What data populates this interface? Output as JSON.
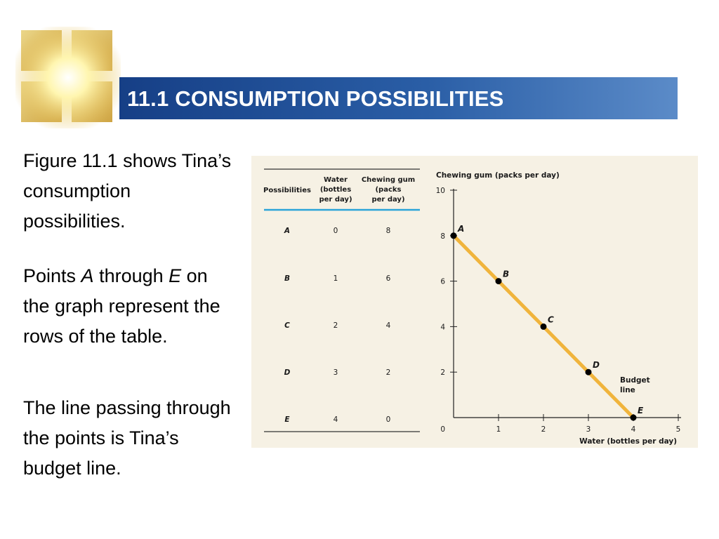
{
  "slide": {
    "title": "11.1 CONSUMPTION POSSIBILITIES",
    "paragraph1": "Figure 11.1 shows Tina’s consumption possibilities.",
    "paragraph2": {
      "part1": "Points ",
      "italic1": "A",
      "part2": " through ",
      "italic2": "E",
      "part3": " on the graph represent the rows of the table."
    },
    "paragraph3": "The line passing through the points is Tina’s budget line."
  },
  "table": {
    "headers": [
      "Possibilities",
      "Water (bottles per day)",
      "Chewing gum (packs per day)"
    ],
    "header_lines": [
      [
        "Possibilities"
      ],
      [
        "Water",
        "(bottles",
        "per day)"
      ],
      [
        "Chewing gum",
        "(packs",
        "per day)"
      ]
    ],
    "rows": [
      [
        "A",
        "0",
        "8"
      ],
      [
        "B",
        "1",
        "6"
      ],
      [
        "C",
        "2",
        "4"
      ],
      [
        "D",
        "3",
        "2"
      ],
      [
        "E",
        "4",
        "0"
      ]
    ]
  },
  "chart_data": {
    "type": "line",
    "title": "",
    "xlabel": "Water (bottles per day)",
    "ylabel": "Chewing gum (packs per day)",
    "xlim": [
      0,
      5
    ],
    "ylim": [
      0,
      10
    ],
    "xticks": [
      "1",
      "2",
      "3",
      "4",
      "5"
    ],
    "yticks": [
      "10",
      "8",
      "6",
      "4",
      "2"
    ],
    "origin_label": "0",
    "series": [
      {
        "name": "Budget line",
        "x": [
          0,
          1,
          2,
          3,
          4
        ],
        "y": [
          8,
          6,
          4,
          2,
          0
        ],
        "point_labels": [
          "A",
          "B",
          "C",
          "D",
          "E"
        ]
      }
    ],
    "annotation": [
      "Budget",
      "line"
    ],
    "line_color": "#f0b43c",
    "point_color": "#000000",
    "grid": false
  }
}
